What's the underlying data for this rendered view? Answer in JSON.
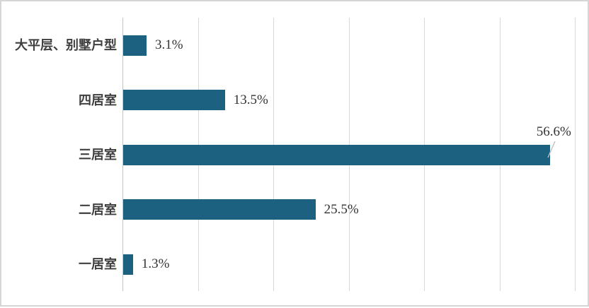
{
  "chart_data": {
    "type": "bar",
    "orientation": "horizontal",
    "title": "",
    "xlabel": "",
    "ylabel": "",
    "categories": [
      "大平层、别墅户型",
      "四居室",
      "三居室",
      "二居室",
      "一居室"
    ],
    "values": [
      3.1,
      13.5,
      56.6,
      25.5,
      1.3
    ],
    "value_labels": [
      "3.1%",
      "13.5%",
      "56.6%",
      "25.5%",
      "1.3%"
    ],
    "label_placements": [
      "right",
      "right",
      "above",
      "right",
      "right"
    ],
    "xlim": [
      0,
      60
    ],
    "gridline_step": 10,
    "grid": true,
    "legend": false,
    "axis_tick_labels_visible": false,
    "colors": {
      "bar": "#1c6180",
      "gridline": "#d9d9d9",
      "axis_line": "#c3c3c3",
      "leader_line": "#bfbfbf",
      "category_label": "#3f3f3f",
      "value_label": "#333333",
      "frame_border": "#d6d6d6",
      "background": "#ffffff"
    }
  }
}
